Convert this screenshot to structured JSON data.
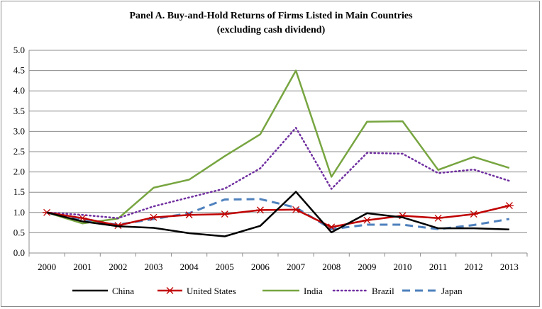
{
  "chart_data": {
    "type": "line",
    "title": "Panel A. Buy-and-Hold Returns of Firms Listed in Main Countries",
    "subtitle": "(excluding cash dividend)",
    "xlabel": "",
    "ylabel": "",
    "ylim": [
      0,
      5
    ],
    "yticks": [
      "0.0",
      "0.5",
      "1.0",
      "1.5",
      "2.0",
      "2.5",
      "3.0",
      "3.5",
      "4.0",
      "4.5",
      "5.0"
    ],
    "categories": [
      "2000",
      "2001",
      "2002",
      "2003",
      "2004",
      "2005",
      "2006",
      "2007",
      "2008",
      "2009",
      "2010",
      "2011",
      "2012",
      "2013"
    ],
    "grid": true,
    "legend_position": "bottom",
    "series": [
      {
        "name": "China",
        "color": "#000000",
        "style": "solid",
        "marker": "none",
        "values": [
          1.0,
          0.78,
          0.66,
          0.62,
          0.49,
          0.41,
          0.67,
          1.51,
          0.51,
          0.98,
          0.88,
          0.61,
          0.61,
          0.58
        ]
      },
      {
        "name": "United States",
        "color": "#c00000",
        "style": "solid",
        "marker": "asterisk",
        "values": [
          1.0,
          0.86,
          0.68,
          0.88,
          0.94,
          0.96,
          1.06,
          1.07,
          0.64,
          0.81,
          0.92,
          0.86,
          0.96,
          1.17
        ]
      },
      {
        "name": "India",
        "color": "#77a540",
        "style": "solid",
        "marker": "none",
        "values": [
          1.0,
          0.73,
          0.85,
          1.61,
          1.81,
          2.39,
          2.93,
          4.5,
          1.88,
          3.24,
          3.25,
          2.05,
          2.37,
          2.1
        ]
      },
      {
        "name": "Brazil",
        "color": "#7030a0",
        "style": "dotted",
        "marker": "none",
        "values": [
          1.0,
          0.94,
          0.86,
          1.15,
          1.37,
          1.59,
          2.09,
          3.09,
          1.58,
          2.47,
          2.45,
          1.97,
          2.06,
          1.78
        ]
      },
      {
        "name": "Japan",
        "color": "#4f81bd",
        "style": "dashed",
        "marker": "none",
        "values": [
          1.0,
          0.8,
          0.7,
          0.84,
          0.98,
          1.32,
          1.33,
          1.12,
          0.59,
          0.7,
          0.7,
          0.59,
          0.69,
          0.84
        ]
      }
    ]
  }
}
